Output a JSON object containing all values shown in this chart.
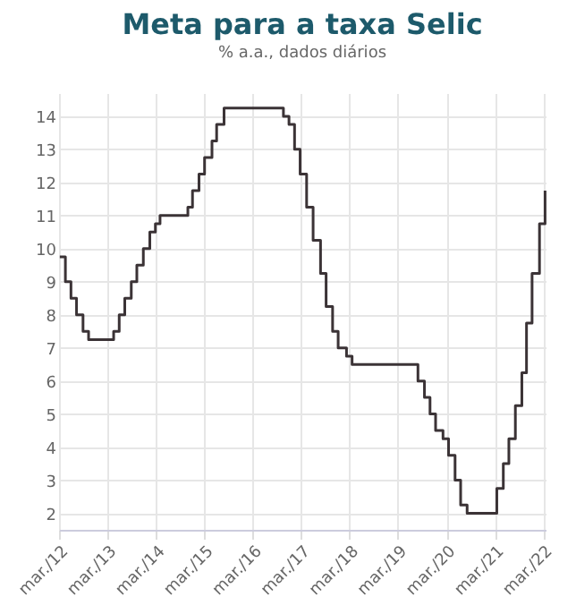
{
  "chart_data": {
    "type": "step",
    "title": "Meta para a taxa Selic",
    "subtitle": "% a.a., dados diários",
    "x": [
      "2012-03-07",
      "2012-04-18",
      "2012-05-30",
      "2012-07-11",
      "2012-08-29",
      "2012-10-10",
      "2013-04-17",
      "2013-05-29",
      "2013-07-10",
      "2013-08-28",
      "2013-10-09",
      "2013-11-27",
      "2014-01-15",
      "2014-02-26",
      "2014-04-02",
      "2014-10-29",
      "2014-12-03",
      "2015-01-21",
      "2015-03-04",
      "2015-04-29",
      "2015-06-03",
      "2015-07-29",
      "2016-10-19",
      "2016-11-30",
      "2017-01-11",
      "2017-02-22",
      "2017-04-12",
      "2017-05-31",
      "2017-07-26",
      "2017-09-06",
      "2017-10-25",
      "2017-12-06",
      "2018-02-07",
      "2018-03-21",
      "2019-07-31",
      "2019-09-18",
      "2019-10-30",
      "2019-12-11",
      "2020-02-05",
      "2020-03-18",
      "2020-05-06",
      "2020-06-17",
      "2020-08-05",
      "2021-03-17",
      "2021-05-05",
      "2021-06-16",
      "2021-08-04",
      "2021-09-22",
      "2021-10-27",
      "2021-12-08",
      "2022-02-02",
      "2022-03-16"
    ],
    "series": [
      {
        "color": "#3b3336",
        "values": [
          9.75,
          9.0,
          8.5,
          8.0,
          7.5,
          7.25,
          7.5,
          8.0,
          8.5,
          9.0,
          9.5,
          10.0,
          10.5,
          10.75,
          11.0,
          11.25,
          11.75,
          12.25,
          12.75,
          13.25,
          13.75,
          14.25,
          14.0,
          13.75,
          13.0,
          12.25,
          11.25,
          10.25,
          9.25,
          8.25,
          7.5,
          7.0,
          6.75,
          6.5,
          6.0,
          5.5,
          5.0,
          4.5,
          4.25,
          3.75,
          3.0,
          2.25,
          2.0,
          2.75,
          3.5,
          4.25,
          5.25,
          6.25,
          7.75,
          9.25,
          10.75,
          11.75
        ]
      }
    ],
    "xlim": [
      "2012-03-01",
      "2022-03-20"
    ],
    "xticks": [
      {
        "value": "2012-03-01",
        "label": "mar./12"
      },
      {
        "value": "2013-03-01",
        "label": "mar./13"
      },
      {
        "value": "2014-03-01",
        "label": "mar./14"
      },
      {
        "value": "2015-03-01",
        "label": "mar./15"
      },
      {
        "value": "2016-03-01",
        "label": "mar./16"
      },
      {
        "value": "2017-03-01",
        "label": "mar./17"
      },
      {
        "value": "2018-03-01",
        "label": "mar./18"
      },
      {
        "value": "2019-03-01",
        "label": "mar./19"
      },
      {
        "value": "2020-03-01",
        "label": "mar./20"
      },
      {
        "value": "2021-03-01",
        "label": "mar./21"
      },
      {
        "value": "2022-03-01",
        "label": "mar./22"
      }
    ],
    "ylim": [
      1.5,
      14.7
    ],
    "yticks": [
      2,
      3,
      4,
      5,
      6,
      7,
      8,
      9,
      10,
      11,
      12,
      13,
      14
    ],
    "grid": true,
    "line_style": "solid",
    "marker": "none"
  }
}
